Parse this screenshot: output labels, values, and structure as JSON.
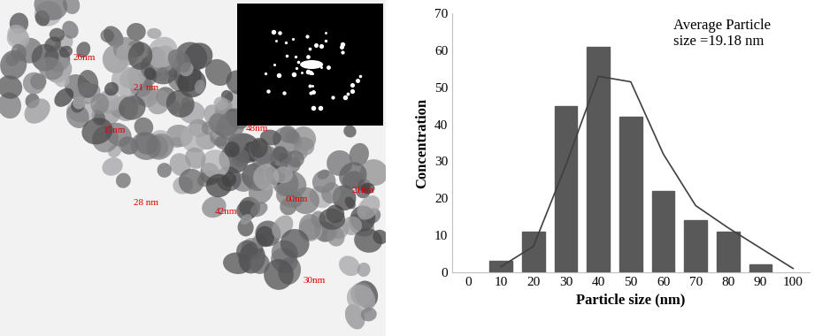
{
  "chart_data": {
    "type": "bar",
    "x_label": "Particle size (nm)",
    "y_label": "Concentration",
    "annotation": "Average Particle\nsize =19.18 nm",
    "series": [
      {
        "type": "bar",
        "color": "#595959",
        "x": [
          10,
          20,
          30,
          40,
          50,
          60,
          70,
          80,
          90
        ],
        "values": [
          3,
          11,
          45,
          61,
          42,
          22,
          14,
          11,
          2
        ]
      },
      {
        "type": "line",
        "color": "#3f3f3f",
        "line_style": "solid",
        "x": [
          10,
          20,
          30,
          40,
          50,
          60,
          70,
          80,
          90,
          100
        ],
        "values": [
          1.5,
          7,
          29,
          53,
          51.5,
          32,
          18,
          12,
          6.5,
          1
        ]
      }
    ],
    "xlim": [
      -5,
      105
    ],
    "xticks": [
      0,
      10,
      20,
      30,
      40,
      50,
      60,
      70,
      80,
      90,
      100
    ],
    "ylim": [
      0,
      70
    ],
    "yticks": [
      0,
      10,
      20,
      30,
      40,
      50,
      60,
      70
    ],
    "grid": false
  },
  "micrograph": {
    "labels": [
      "26nm",
      "21 nm",
      "15nm",
      "48nm",
      "28 nm",
      "42nm",
      "60nm",
      "21nm",
      "30nm"
    ]
  }
}
